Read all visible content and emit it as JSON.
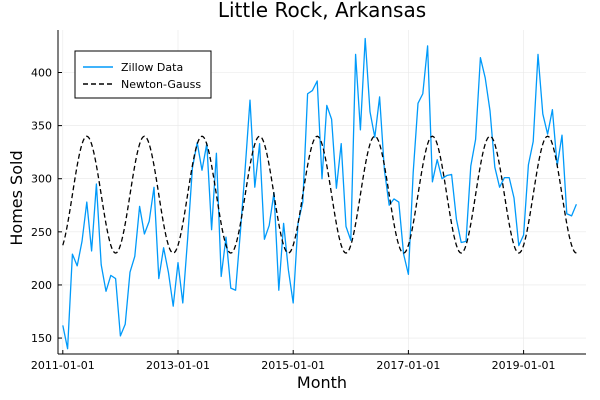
{
  "chart_data": {
    "type": "line",
    "title": "Little Rock, Arkansas",
    "xlabel": "Month",
    "ylabel": "Homes Sold",
    "x_ticks": [
      "2011-01-01",
      "2013-01-01",
      "2015-01-01",
      "2017-01-01",
      "2019-01-01"
    ],
    "y_ticks": [
      150,
      200,
      250,
      300,
      350,
      400
    ],
    "xlim": [
      "2010-12-01",
      "2020-02-01"
    ],
    "ylim": [
      135,
      440
    ],
    "grid": true,
    "legend_position": "top-left",
    "series": [
      {
        "name": "Zillow Data",
        "style": "solid",
        "color": "#009AFA",
        "start": "2011-01",
        "values": [
          162,
          140,
          229,
          218,
          241,
          278,
          232,
          295,
          219,
          194,
          209,
          206,
          152,
          163,
          212,
          227,
          274,
          248,
          260,
          292,
          206,
          235,
          212,
          180,
          221,
          183,
          243,
          310,
          334,
          308,
          333,
          252,
          324,
          208,
          245,
          197,
          195,
          250,
          310,
          374,
          292,
          333,
          243,
          256,
          287,
          195,
          258,
          214,
          183,
          258,
          278,
          380,
          383,
          392,
          300,
          369,
          356,
          291,
          333,
          255,
          242,
          417,
          346,
          432,
          363,
          339,
          377,
          308,
          275,
          281,
          278,
          229,
          210,
          306,
          371,
          380,
          425,
          297,
          318,
          300,
          303,
          304,
          262,
          240,
          241,
          312,
          337,
          414,
          395,
          364,
          311,
          292,
          301,
          301,
          282,
          237,
          247,
          313,
          335,
          417,
          361,
          342,
          365,
          312,
          341,
          267,
          265,
          276
        ]
      },
      {
        "name": "Newton-Gauss",
        "style": "dashed",
        "color": "#000000",
        "start": "2011-01",
        "model": {
          "mean": 285,
          "amplitude": 55,
          "period_months": 12,
          "peak_month_offset": 5
        },
        "y_range": [
          230,
          340
        ]
      }
    ]
  }
}
